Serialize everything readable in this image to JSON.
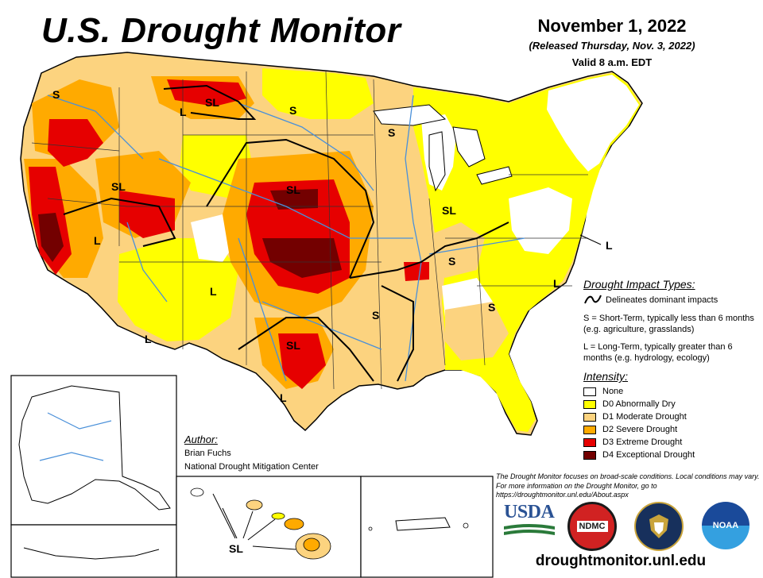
{
  "title": "U.S. Drought Monitor",
  "date": "November 1, 2022",
  "released": "(Released Thursday, Nov. 3, 2022)",
  "valid": "Valid 8 a.m. EDT",
  "impact": {
    "heading": "Drought Impact Types:",
    "line_label": "Delineates dominant impacts",
    "short_term": "S = Short-Term, typically less than 6 months (e.g. agriculture, grasslands)",
    "long_term": "L = Long-Term, typically greater than 6 months (e.g. hydrology, ecology)"
  },
  "intensity": {
    "heading": "Intensity:",
    "levels": [
      {
        "label": "None",
        "color": "#ffffff"
      },
      {
        "label": "D0 Abnormally Dry",
        "color": "#ffff00"
      },
      {
        "label": "D1 Moderate Drought",
        "color": "#fcd37f"
      },
      {
        "label": "D2 Severe Drought",
        "color": "#ffaa00"
      },
      {
        "label": "D3 Extreme Drought",
        "color": "#e60000"
      },
      {
        "label": "D4 Exceptional Drought",
        "color": "#730000"
      }
    ]
  },
  "author": {
    "heading": "Author:",
    "name": "Brian Fuchs",
    "org": "National Drought Mitigation Center"
  },
  "disclaimer": "The Drought Monitor focuses on broad-scale conditions. Local conditions may vary. For more information on the Drought Monitor, go to https://droughtmonitor.unl.edu/About.aspx",
  "url": "droughtmonitor.unl.edu",
  "logos": {
    "usda": "USDA",
    "ndmc": "NDMC",
    "noaa": "NOAA"
  },
  "map_labels": {
    "s": "S",
    "l": "L",
    "sl": "SL"
  },
  "colors": {
    "water": "#4a90d9",
    "border": "#000000",
    "state_line": "#333333"
  }
}
